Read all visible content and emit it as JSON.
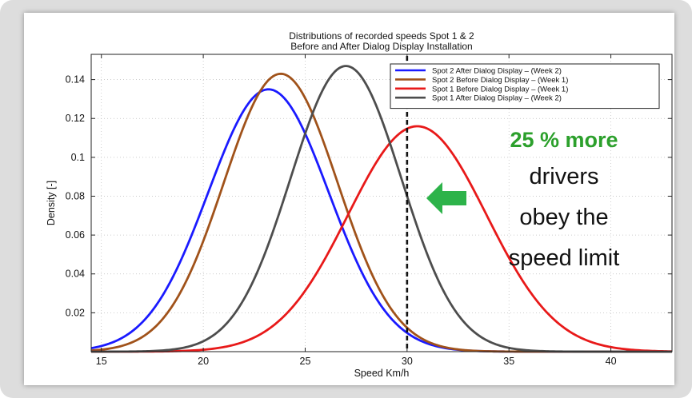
{
  "chart_data": {
    "type": "line",
    "title": [
      "Distributions of recorded speeds Spot 1 & 2",
      "Before and After Dialog Display Installation"
    ],
    "xlabel": "Speed Km/h",
    "ylabel": "Density [-]",
    "xlim": [
      14.5,
      43
    ],
    "ylim": [
      0,
      0.153
    ],
    "xticks": [
      15,
      20,
      25,
      30,
      35,
      40
    ],
    "yticks": [
      0.02,
      0.04,
      0.06,
      0.08,
      0.1,
      0.12,
      0.14
    ],
    "ytick_labels": [
      "0.02",
      "0.04",
      "0.06",
      "0.08",
      "0.1",
      "0.12",
      "0.14"
    ],
    "grid": true,
    "legend_position": "top-right",
    "speed_limit_x": 30,
    "series": [
      {
        "name": "Spot 2 After Dialog Display – (Week 2)",
        "color": "#1a1aff",
        "mean": 23.2,
        "std": 2.96,
        "peak": 0.135
      },
      {
        "name": "Spot 2 Before Dialog Display – (Week 1)",
        "color": "#a0521a",
        "mean": 23.8,
        "std": 2.8,
        "peak": 0.143
      },
      {
        "name": "Spot 1 Before Dialog Display – (Week 1)",
        "color": "#e81919",
        "mean": 30.5,
        "std": 3.4,
        "peak": 0.116
      },
      {
        "name": "Spot 1 After Dialog Display – (Week 2)",
        "color": "#4d4d4d",
        "mean": 27.0,
        "std": 2.72,
        "peak": 0.147
      }
    ]
  },
  "annotation": {
    "highlight": "25 % more",
    "lines": [
      "drivers",
      "obey the",
      "speed limit"
    ],
    "highlight_color": "#2ca02c",
    "arrow_color": "#2db34a",
    "arrow_icon": "arrow-left-icon"
  }
}
